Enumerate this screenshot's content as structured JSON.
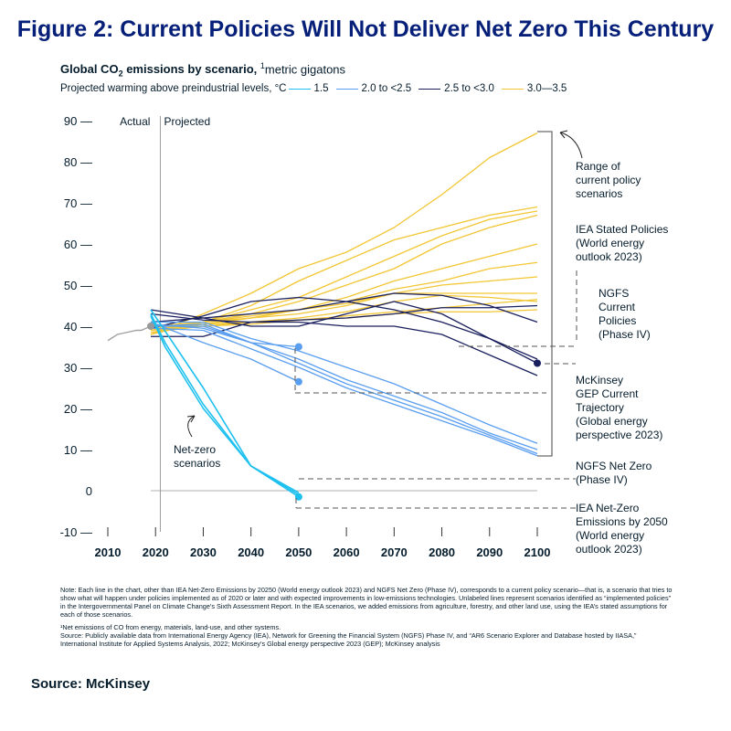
{
  "figure_title": "Figure 2: Current Policies Will Not Deliver Net Zero This Century",
  "subtitle": {
    "prefix": "Global CO",
    "sub": "2",
    "mid": " emissions by scenario, ",
    "sup": "1",
    "suffix": "metric gigatons"
  },
  "legend": {
    "label": "Projected warming above preindustrial levels, °C",
    "items": [
      {
        "label": "1.5",
        "color": "#1ec0f0"
      },
      {
        "label": "2.0 to <2.5",
        "color": "#5a9ef0"
      },
      {
        "label": "2.5 to <3.0",
        "color": "#1a1f5e"
      },
      {
        "label": "3.0—3.5",
        "color": "#f2c634"
      }
    ]
  },
  "chart_data": {
    "type": "line",
    "title": "Global CO2 emissions by scenario",
    "xlabel": "",
    "ylabel": "metric gigatons",
    "xlim": [
      2010,
      2100
    ],
    "ylim": [
      -10,
      90
    ],
    "x_ticks": [
      "2010",
      "2020",
      "2030",
      "2040",
      "2050",
      "2060",
      "2070",
      "2080",
      "2090",
      "2100"
    ],
    "y_ticks": [
      "90 —",
      "80 —",
      "70 —",
      "60 —",
      "50 —",
      "40 —",
      "30 —",
      "20 —",
      "10 —",
      "0",
      "-10 —"
    ],
    "region_labels": {
      "actual": "Actual",
      "projected": "Projected"
    },
    "actual": {
      "name": "Actual",
      "x": [
        2010,
        2012,
        2014,
        2016,
        2017,
        2018,
        2019
      ],
      "y": [
        36.5,
        38,
        38.5,
        39,
        39,
        39.5,
        40
      ]
    },
    "series": [
      {
        "name": "Range of current policy scenarios (upper)",
        "group": "3.0-3.5",
        "x": [
          2019,
          2030,
          2040,
          2050,
          2060,
          2070,
          2080,
          2090,
          2100
        ],
        "y": [
          38,
          43,
          48,
          54,
          58,
          64,
          72,
          81,
          87
        ]
      },
      {
        "name": "IEA Stated Policies (World energy outlook 2023)",
        "group": "3.0-3.5",
        "x": [
          2019,
          2030,
          2040,
          2050,
          2060,
          2070,
          2080,
          2090,
          2100
        ],
        "y": [
          39,
          41,
          45,
          51,
          56,
          61,
          64,
          67,
          69
        ]
      },
      {
        "name": "3.0-3.5 scenario",
        "group": "3.0-3.5",
        "x": [
          2019,
          2030,
          2040,
          2050,
          2060,
          2070,
          2080,
          2090,
          2100
        ],
        "y": [
          38,
          41,
          44,
          47,
          52,
          57,
          62,
          66,
          68
        ]
      },
      {
        "name": "3.0-3.5 scenario",
        "group": "3.0-3.5",
        "x": [
          2019,
          2030,
          2040,
          2050,
          2060,
          2070,
          2080,
          2090,
          2100
        ],
        "y": [
          39,
          41,
          43,
          46,
          50,
          54,
          60,
          64,
          67
        ]
      },
      {
        "name": "3.0-3.5 scenario",
        "group": "3.0-3.5",
        "x": [
          2019,
          2030,
          2040,
          2050,
          2060,
          2070,
          2080,
          2090,
          2100
        ],
        "y": [
          38.5,
          40.5,
          42,
          44,
          47,
          51,
          54,
          57,
          60
        ]
      },
      {
        "name": "3.0-3.5 scenario",
        "group": "3.0-3.5",
        "x": [
          2019,
          2030,
          2040,
          2050,
          2060,
          2070,
          2080,
          2090,
          2100
        ],
        "y": [
          39,
          40.5,
          42,
          44,
          46,
          49,
          51,
          54,
          55.5
        ]
      },
      {
        "name": "3.0-3.5 scenario",
        "group": "3.0-3.5",
        "x": [
          2019,
          2030,
          2040,
          2050,
          2060,
          2070,
          2080,
          2090,
          2100
        ],
        "y": [
          39.5,
          41,
          42.5,
          44,
          45.5,
          48,
          50,
          51,
          52
        ]
      },
      {
        "name": "3.0-3.5 scenario",
        "group": "3.0-3.5",
        "x": [
          2019,
          2030,
          2040,
          2050,
          2060,
          2070,
          2080,
          2090,
          2100
        ],
        "y": [
          40,
          41,
          42,
          43,
          45,
          48,
          48,
          48,
          48
        ]
      },
      {
        "name": "3.0-3.5 scenario",
        "group": "3.0-3.5",
        "x": [
          2019,
          2030,
          2040,
          2050,
          2060,
          2070,
          2080,
          2090,
          2100
        ],
        "y": [
          38.5,
          40,
          41,
          42,
          43.5,
          46,
          47.5,
          47,
          46
        ]
      },
      {
        "name": "3.0-3.5 scenario",
        "group": "3.0-3.5",
        "x": [
          2019,
          2030,
          2040,
          2050,
          2060,
          2070,
          2080,
          2090,
          2100
        ],
        "y": [
          39,
          40,
          40.5,
          41.5,
          42.5,
          43.5,
          44.5,
          45.5,
          46.5
        ]
      },
      {
        "name": "3.0-3.5 scenario",
        "group": "3.0-3.5",
        "x": [
          2019,
          2030,
          2040,
          2050,
          2060,
          2070,
          2080,
          2090,
          2100
        ],
        "y": [
          40,
          40.5,
          41,
          41.5,
          42,
          43,
          43.5,
          43.5,
          44
        ]
      },
      {
        "name": "NGFS Current Policies (Phase IV)",
        "group": "2.5 to <3.0",
        "x": [
          2019,
          2030,
          2040,
          2050,
          2060,
          2070,
          2080,
          2090,
          2100
        ],
        "y": [
          44,
          42,
          40,
          40,
          43,
          46,
          43,
          37,
          31
        ]
      },
      {
        "name": "2.5 to <3.0 scenario",
        "group": "2.5 to <3.0",
        "x": [
          2019,
          2030,
          2040,
          2050,
          2060,
          2070,
          2080,
          2090,
          2100
        ],
        "y": [
          39.5,
          42.5,
          46,
          47,
          46,
          44,
          41,
          37,
          32
        ]
      },
      {
        "name": "2.5 to <3.0 scenario",
        "group": "2.5 to <3.0",
        "x": [
          2019,
          2030,
          2040,
          2050,
          2060,
          2070,
          2080,
          2090,
          2100
        ],
        "y": [
          41,
          42,
          43,
          44,
          46,
          48,
          47.5,
          45,
          41
        ]
      },
      {
        "name": "2.5 to <3.0 scenario",
        "group": "2.5 to <3.0",
        "x": [
          2019,
          2030,
          2040,
          2050,
          2060,
          2070,
          2080,
          2090,
          2100
        ],
        "y": [
          43,
          41.5,
          41,
          41,
          40,
          40,
          38,
          33,
          28
        ]
      },
      {
        "name": "2.5 to <3.0 scenario",
        "group": "2.5 to <3.0",
        "x": [
          2019,
          2030,
          2040,
          2050,
          2060,
          2070,
          2080,
          2090,
          2100
        ],
        "y": [
          37.5,
          37.5,
          41,
          41.5,
          42,
          43,
          44.5,
          44.5,
          45
        ]
      },
      {
        "name": "McKinsey GEP Current Trajectory (Global energy perspective 2023)",
        "group": "2.0 to <2.5",
        "x": [
          2019,
          2030,
          2040,
          2050
        ],
        "y": [
          40,
          40.5,
          36,
          35
        ]
      },
      {
        "name": "2.0 to <2.5 scenario",
        "group": "2.0 to <2.5",
        "x": [
          2019,
          2030,
          2040,
          2050,
          2060,
          2070,
          2080,
          2090,
          2100
        ],
        "y": [
          41,
          41,
          37,
          34,
          30,
          26,
          21,
          16,
          11.5
        ]
      },
      {
        "name": "2.0 to <2.5 scenario",
        "group": "2.0 to <2.5",
        "x": [
          2019,
          2030,
          2040,
          2050,
          2060,
          2070,
          2080,
          2090,
          2100
        ],
        "y": [
          40,
          40,
          36,
          32,
          27,
          23,
          19,
          14,
          10
        ]
      },
      {
        "name": "2.0 to <2.5 scenario",
        "group": "2.0 to <2.5",
        "x": [
          2019,
          2030,
          2040,
          2050,
          2060,
          2070,
          2080,
          2090,
          2100
        ],
        "y": [
          40.5,
          39.5,
          36,
          31,
          26,
          22,
          18,
          13.5,
          9
        ]
      },
      {
        "name": "2.0 to <2.5 scenario",
        "group": "2.0 to <2.5",
        "x": [
          2019,
          2030,
          2040,
          2050,
          2060,
          2070,
          2080,
          2090,
          2100
        ],
        "y": [
          39.5,
          39,
          34.5,
          30,
          25,
          21,
          17,
          13,
          8.5
        ]
      },
      {
        "name": "NGFS Net Zero (Phase IV)",
        "group": "2.0 to <2.5",
        "x": [
          2019,
          2030,
          2040,
          2050
        ],
        "y": [
          41,
          36,
          32,
          26.5
        ]
      },
      {
        "name": "IEA Net-Zero Emissions by 2050 (World energy outlook 2023)",
        "group": "1.5",
        "x": [
          2019,
          2022,
          2030,
          2040,
          2050
        ],
        "y": [
          43,
          36,
          21,
          6,
          -1.5
        ]
      },
      {
        "name": "1.5 scenario",
        "group": "1.5",
        "x": [
          2019,
          2022,
          2030,
          2040,
          2050
        ],
        "y": [
          42.5,
          35,
          20,
          6,
          -1
        ]
      },
      {
        "name": "1.5 scenario",
        "group": "1.5",
        "x": [
          2019,
          2030,
          2040,
          2050
        ],
        "y": [
          44,
          25,
          6,
          -0.5
        ]
      }
    ],
    "markers": [
      {
        "series": "McKinsey GEP Current Trajectory",
        "x": 2050,
        "y": 35,
        "color": "#5a9ef0"
      },
      {
        "series": "NGFS Net Zero (Phase IV)",
        "x": 2050,
        "y": 26.5,
        "color": "#5a9ef0"
      },
      {
        "series": "IEA Net-Zero Emissions by 2050",
        "x": 2050,
        "y": -1.5,
        "color": "#1ec0f0"
      },
      {
        "series": "NGFS Current Policies (Phase IV)",
        "x": 2100,
        "y": 31,
        "color": "#1a1f5e"
      },
      {
        "series": "Actual",
        "x": 2019,
        "y": 40,
        "color": "#999999"
      }
    ],
    "annotations": {
      "range": [
        "Range of",
        "current policy",
        "scenarios"
      ],
      "iea_stated": [
        "IEA Stated Policies",
        "(World energy",
        "outlook 2023)"
      ],
      "ngfs_current": [
        "NGFS",
        "Current",
        "Policies",
        "(Phase IV)"
      ],
      "mckinsey": [
        "McKinsey",
        "GEP Current",
        "Trajectory",
        "(Global energy",
        "perspective 2023)"
      ],
      "ngfs_netzero": [
        "NGFS Net Zero",
        "(Phase IV)"
      ],
      "iea_netzero": [
        "IEA Net-Zero",
        "Emissions by 2050",
        "(World energy",
        "outlook 2023)"
      ],
      "net_zero": [
        "Net-zero",
        "scenarios"
      ]
    }
  },
  "note": {
    "main": "Note: Each line in the chart, other than IEA Net-Zero Emissions by 20250 (World energy outlook 2023) and NGFS Net Zero (Phase IV), corresponds to a current policy scenario—that is, a scenario that tries to show what will happen under policies implemented as of 2020 or later and with expected improvements in low-emissions technologies. Unlabeled lines represent scenarios identified as “implemented policies” in the Intergovernmental Panel on Climate Change’s Sixth Assessment Report. In the IEA scenarios, we added emissions from agriculture, forestry, and other land use, using the IEA’s stated assumptions for each of those scenarios.",
    "footnote": "¹Net emissions of CO  from energy, materials, land-use, and other systems.",
    "sources": "Source: Publicly available data from International Energy Agency (IEA), Network for Greening the Financial System (NGFS) Phase IV, and “AR6 Scenario Explorer and Database hosted by IIASA,” International Institute for Applied Systems Analysis, 2022; McKinsey’s Global energy perspective 2023 (GEP); McKinsey analysis"
  },
  "source_label": "Source: McKinsey"
}
